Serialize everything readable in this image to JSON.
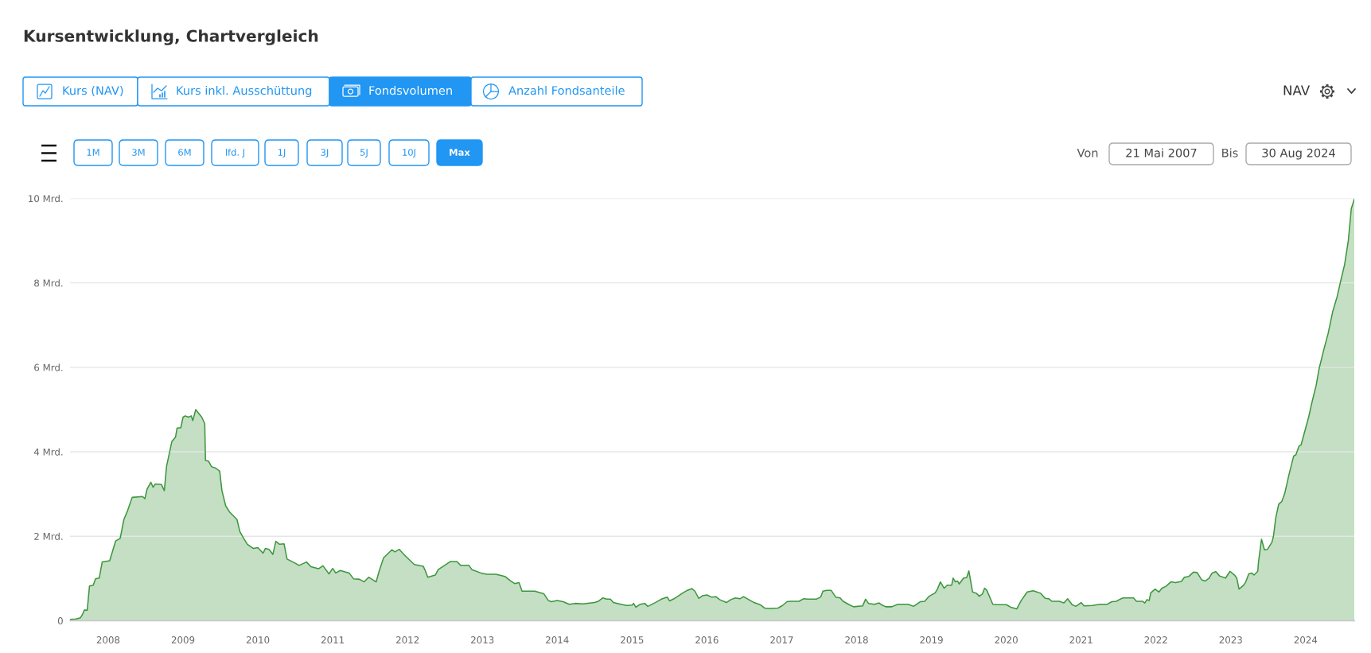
{
  "chart_data": {
    "type": "area",
    "title": "Kursentwicklung, Chartvergleich",
    "color": "#3c963c",
    "x": [
      2007.49,
      2007.57,
      2007.63,
      2007.66,
      2007.68,
      2007.72,
      2007.75,
      2007.8,
      2007.83,
      2007.88,
      2007.92,
      2008.02,
      2008.1,
      2008.16,
      2008.21,
      2008.26,
      2008.32,
      2008.46,
      2008.49,
      2008.52,
      2008.57,
      2008.6,
      2008.63,
      2008.71,
      2008.75,
      2008.78,
      2008.82,
      2008.85,
      2008.9,
      2008.92,
      2008.97,
      2009.0,
      2009.03,
      2009.07,
      2009.11,
      2009.13,
      2009.17,
      2009.21,
      2009.25,
      2009.29,
      2009.3,
      2009.34,
      2009.38,
      2009.44,
      2009.49,
      2009.52,
      2009.57,
      2009.62,
      2009.68,
      2009.72,
      2009.76,
      2009.81,
      2009.86,
      2009.94,
      2010.0,
      2010.07,
      2010.1,
      2010.15,
      2010.2,
      2010.24,
      2010.29,
      2010.35,
      2010.39,
      2010.49,
      2010.55,
      2010.65,
      2010.71,
      2010.81,
      2010.87,
      2010.95,
      2011.0,
      2011.04,
      2011.1,
      2011.22,
      2011.28,
      2011.36,
      2011.42,
      2011.48,
      2011.58,
      2011.62,
      2011.68,
      2011.79,
      2011.83,
      2011.89,
      2011.95,
      2012.09,
      2012.21,
      2012.24,
      2012.27,
      2012.37,
      2012.41,
      2012.47,
      2012.53,
      2012.57,
      2012.66,
      2012.71,
      2012.82,
      2012.86,
      2012.98,
      2013.06,
      2013.18,
      2013.3,
      2013.37,
      2013.43,
      2013.49,
      2013.53,
      2013.7,
      2013.82,
      2013.88,
      2013.92,
      2014.0,
      2014.08,
      2014.16,
      2014.24,
      2014.34,
      2014.5,
      2014.55,
      2014.61,
      2014.66,
      2014.71,
      2014.75,
      2014.85,
      2014.93,
      2015.0,
      2015.02,
      2015.05,
      2015.11,
      2015.17,
      2015.21,
      2015.31,
      2015.39,
      2015.47,
      2015.5,
      2015.56,
      2015.62,
      2015.68,
      2015.74,
      2015.8,
      2015.84,
      2015.89,
      2015.94,
      2016.0,
      2016.06,
      2016.12,
      2016.17,
      2016.26,
      2016.32,
      2016.38,
      2016.44,
      2016.49,
      2016.55,
      2016.63,
      2016.71,
      2016.77,
      2016.83,
      2016.95,
      2017.01,
      2017.07,
      2017.11,
      2017.23,
      2017.29,
      2017.35,
      2017.46,
      2017.52,
      2017.55,
      2017.6,
      2017.66,
      2017.72,
      2017.78,
      2017.82,
      2017.9,
      2017.96,
      2018.08,
      2018.12,
      2018.16,
      2018.24,
      2018.3,
      2018.33,
      2018.39,
      2018.47,
      2018.55,
      2018.63,
      2018.69,
      2018.76,
      2018.85,
      2018.91,
      2018.97,
      2019.05,
      2019.08,
      2019.12,
      2019.17,
      2019.21,
      2019.27,
      2019.29,
      2019.32,
      2019.35,
      2019.37,
      2019.43,
      2019.47,
      2019.5,
      2019.55,
      2019.6,
      2019.64,
      2019.68,
      2019.71,
      2019.74,
      2019.82,
      2019.88,
      2020.0,
      2020.06,
      2020.14,
      2020.2,
      2020.28,
      2020.36,
      2020.46,
      2020.52,
      2020.57,
      2020.61,
      2020.71,
      2020.77,
      2020.82,
      2020.88,
      2020.93,
      2021.0,
      2021.04,
      2021.15,
      2021.25,
      2021.35,
      2021.41,
      2021.47,
      2021.51,
      2021.56,
      2021.7,
      2021.74,
      2021.82,
      2021.85,
      2021.88,
      2021.91,
      2021.93,
      2021.99,
      2022.04,
      2022.08,
      2022.13,
      2022.2,
      2022.26,
      2022.34,
      2022.38,
      2022.44,
      2022.5,
      2022.55,
      2022.61,
      2022.66,
      2022.71,
      2022.75,
      2022.8,
      2022.85,
      2022.93,
      2022.99,
      2023.05,
      2023.08,
      2023.11,
      2023.17,
      2023.2,
      2023.24,
      2023.28,
      2023.31,
      2023.36,
      2023.37,
      2023.41,
      2023.45,
      2023.49,
      2023.55,
      2023.57,
      2023.6,
      2023.64,
      2023.68,
      2023.72,
      2023.78,
      2023.84,
      2023.87,
      2023.91,
      2023.94,
      2024.0,
      2024.04,
      2024.08,
      2024.14,
      2024.18,
      2024.24,
      2024.3,
      2024.36,
      2024.42,
      2024.47,
      2024.52,
      2024.57,
      2024.61,
      2024.65
    ],
    "values": [
      0.03,
      0.04,
      0.07,
      0.16,
      0.25,
      0.25,
      0.82,
      0.84,
      0.99,
      1.01,
      1.39,
      1.42,
      1.89,
      1.95,
      2.4,
      2.61,
      2.92,
      2.94,
      2.89,
      3.12,
      3.28,
      3.16,
      3.24,
      3.23,
      3.08,
      3.66,
      3.99,
      4.24,
      4.35,
      4.56,
      4.57,
      4.82,
      4.85,
      4.82,
      4.85,
      4.74,
      5.0,
      4.91,
      4.82,
      4.67,
      3.8,
      3.78,
      3.65,
      3.61,
      3.54,
      3.08,
      2.72,
      2.58,
      2.47,
      2.4,
      2.11,
      1.95,
      1.81,
      1.71,
      1.73,
      1.6,
      1.71,
      1.69,
      1.57,
      1.88,
      1.81,
      1.82,
      1.46,
      1.37,
      1.31,
      1.39,
      1.28,
      1.23,
      1.3,
      1.11,
      1.24,
      1.13,
      1.19,
      1.13,
      0.99,
      0.98,
      0.92,
      1.03,
      0.92,
      1.17,
      1.49,
      1.68,
      1.63,
      1.69,
      1.57,
      1.33,
      1.29,
      1.17,
      1.03,
      1.08,
      1.21,
      1.28,
      1.35,
      1.4,
      1.4,
      1.31,
      1.31,
      1.21,
      1.13,
      1.1,
      1.1,
      1.05,
      0.95,
      0.88,
      0.9,
      0.7,
      0.7,
      0.64,
      0.48,
      0.45,
      0.48,
      0.45,
      0.39,
      0.41,
      0.4,
      0.43,
      0.46,
      0.54,
      0.51,
      0.51,
      0.43,
      0.39,
      0.36,
      0.37,
      0.41,
      0.32,
      0.39,
      0.41,
      0.34,
      0.43,
      0.51,
      0.56,
      0.47,
      0.52,
      0.59,
      0.66,
      0.72,
      0.76,
      0.7,
      0.53,
      0.59,
      0.61,
      0.56,
      0.57,
      0.5,
      0.43,
      0.5,
      0.54,
      0.52,
      0.57,
      0.51,
      0.43,
      0.38,
      0.3,
      0.29,
      0.3,
      0.36,
      0.45,
      0.46,
      0.46,
      0.52,
      0.51,
      0.51,
      0.56,
      0.7,
      0.72,
      0.72,
      0.56,
      0.54,
      0.46,
      0.38,
      0.33,
      0.35,
      0.51,
      0.41,
      0.39,
      0.42,
      0.38,
      0.33,
      0.33,
      0.39,
      0.39,
      0.39,
      0.34,
      0.45,
      0.46,
      0.58,
      0.66,
      0.75,
      0.92,
      0.77,
      0.84,
      0.84,
      1.01,
      0.92,
      0.94,
      0.87,
      1.01,
      1.02,
      1.18,
      0.68,
      0.65,
      0.58,
      0.63,
      0.77,
      0.72,
      0.39,
      0.38,
      0.38,
      0.32,
      0.28,
      0.48,
      0.68,
      0.71,
      0.65,
      0.53,
      0.52,
      0.46,
      0.46,
      0.42,
      0.52,
      0.38,
      0.34,
      0.43,
      0.35,
      0.36,
      0.39,
      0.39,
      0.45,
      0.46,
      0.5,
      0.54,
      0.54,
      0.46,
      0.46,
      0.42,
      0.5,
      0.48,
      0.66,
      0.75,
      0.68,
      0.77,
      0.81,
      0.92,
      0.9,
      0.93,
      1.03,
      1.05,
      1.15,
      1.14,
      0.97,
      0.94,
      1.01,
      1.13,
      1.16,
      1.06,
      1.01,
      1.17,
      1.08,
      1.01,
      0.75,
      0.84,
      0.92,
      1.11,
      1.13,
      1.08,
      1.17,
      1.39,
      1.93,
      1.68,
      1.69,
      1.86,
      2.0,
      2.43,
      2.76,
      2.82,
      3.01,
      3.48,
      3.9,
      3.93,
      4.13,
      4.17,
      4.56,
      4.82,
      5.14,
      5.57,
      5.97,
      6.4,
      6.8,
      7.31,
      7.67,
      8.06,
      8.43,
      9.0,
      9.76,
      9.98
    ],
    "xlim": [
      2007.49,
      2024.65
    ],
    "xticks": [
      2008,
      2009,
      2010,
      2011,
      2012,
      2013,
      2014,
      2015,
      2016,
      2017,
      2018,
      2019,
      2020,
      2021,
      2022,
      2023,
      2024
    ],
    "ylim": [
      0,
      10
    ],
    "yticks": [
      0,
      {
        "value": 2,
        "label": "2 Mrd."
      },
      {
        "value": 4,
        "label": "4 Mrd."
      },
      {
        "value": 6,
        "label": "6 Mrd."
      },
      {
        "value": 8,
        "label": "8 Mrd."
      },
      {
        "value": 10,
        "label": "10 Mrd."
      }
    ],
    "grid": "y",
    "annotations": [
      "Kurs (NAV)",
      "Kurs inkl. Ausschüttung",
      "Fondsvolumen",
      "Anzahl Fondsanteile",
      "NAV",
      "1M",
      "3M",
      "6M",
      "lfd. J",
      "1J",
      "3J",
      "5J",
      "10J",
      "Max",
      "Von",
      "21 Mai 2007",
      "Bis",
      "30 Aug 2024"
    ]
  }
}
